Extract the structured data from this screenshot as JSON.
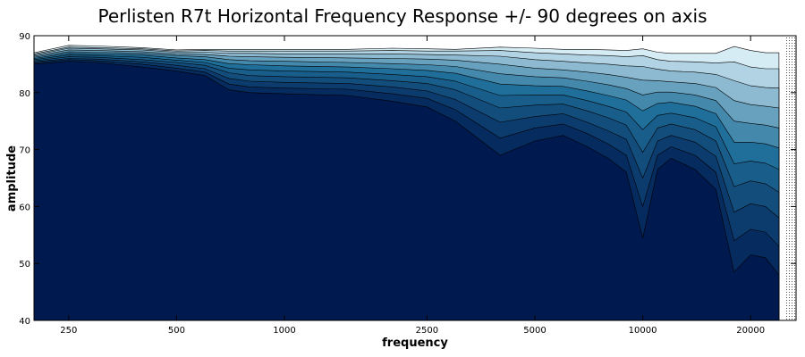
{
  "chart_data": {
    "type": "area",
    "title": "Perlisten R7t Horizontal Frequency Response +/- 90 degrees on axis",
    "xlabel": "frequency",
    "ylabel": "amplitude",
    "xscale": "log",
    "xlim": [
      200,
      25000
    ],
    "ylim": [
      40,
      90
    ],
    "xticks": [
      250,
      500,
      1000,
      2500,
      5000,
      10000,
      20000
    ],
    "yticks": [
      40,
      50,
      60,
      70,
      80,
      90
    ],
    "grid": false,
    "legend": "none",
    "colors": {
      "fill_deep": "#001a50",
      "fill_mid": "#1f6f9a",
      "fill_light": "#d6ecf5",
      "line": "#000000"
    },
    "x": [
      200,
      250,
      300,
      400,
      500,
      600,
      700,
      800,
      1000,
      1500,
      2000,
      2500,
      3000,
      4000,
      5000,
      6000,
      7000,
      8000,
      9000,
      10000,
      11000,
      12000,
      14000,
      16000,
      18000,
      20000,
      22000,
      24000
    ],
    "series": [
      {
        "values": [
          85.0,
          85.5,
          85.3,
          84.5,
          83.8,
          83.0,
          80.5,
          80.0,
          79.8,
          79.5,
          78.5,
          77.5,
          75.0,
          69.0,
          71.5,
          72.5,
          70.5,
          68.5,
          66.0,
          54.5,
          66.5,
          68.5,
          66.5,
          63.0,
          48.5,
          51.5,
          51.0,
          48.0
        ]
      },
      {
        "values": [
          85.2,
          85.8,
          85.6,
          85.0,
          84.3,
          83.6,
          81.5,
          81.0,
          80.8,
          80.6,
          79.8,
          79.0,
          77.0,
          72.0,
          73.8,
          74.5,
          72.8,
          71.0,
          69.0,
          60.0,
          69.0,
          70.5,
          69.0,
          66.0,
          54.0,
          56.0,
          55.5,
          53.0
        ]
      },
      {
        "values": [
          85.4,
          86.0,
          85.9,
          85.4,
          84.8,
          84.2,
          82.5,
          82.0,
          81.8,
          81.6,
          81.0,
          80.3,
          78.8,
          74.8,
          75.8,
          76.3,
          74.8,
          73.3,
          71.8,
          65.0,
          71.5,
          72.5,
          71.3,
          68.8,
          59.0,
          60.5,
          60.0,
          58.0
        ]
      },
      {
        "values": [
          85.6,
          86.3,
          86.2,
          85.8,
          85.3,
          84.8,
          83.5,
          83.0,
          82.8,
          82.6,
          82.1,
          81.6,
          80.5,
          77.3,
          77.8,
          78.0,
          76.8,
          75.6,
          74.3,
          69.5,
          73.8,
          74.5,
          73.5,
          71.5,
          63.5,
          64.5,
          64.0,
          62.5
        ]
      },
      {
        "values": [
          85.8,
          86.6,
          86.5,
          86.2,
          85.7,
          85.3,
          84.3,
          84.0,
          83.8,
          83.6,
          83.2,
          82.8,
          82.0,
          79.5,
          79.6,
          79.6,
          78.6,
          77.6,
          76.6,
          73.5,
          76.0,
          76.4,
          75.6,
          74.0,
          67.5,
          68.0,
          67.6,
          66.5
        ]
      },
      {
        "values": [
          86.0,
          86.9,
          86.8,
          86.6,
          86.1,
          85.8,
          85.1,
          84.9,
          84.7,
          84.5,
          84.2,
          83.9,
          83.4,
          81.5,
          81.2,
          81.1,
          80.3,
          79.5,
          78.7,
          76.8,
          78.1,
          78.3,
          77.6,
          76.3,
          71.3,
          71.3,
          71.0,
          70.3
        ]
      },
      {
        "values": [
          86.2,
          87.2,
          87.1,
          86.9,
          86.5,
          86.3,
          85.8,
          85.6,
          85.5,
          85.3,
          85.1,
          84.9,
          84.6,
          83.3,
          82.8,
          82.6,
          82.0,
          81.4,
          80.7,
          79.6,
          80.1,
          80.1,
          79.6,
          78.6,
          75.0,
          74.6,
          74.3,
          73.8
        ]
      },
      {
        "values": [
          86.4,
          87.5,
          87.4,
          87.2,
          86.8,
          86.7,
          86.4,
          86.3,
          86.2,
          86.1,
          86.0,
          85.9,
          85.7,
          85.0,
          84.3,
          84.0,
          83.6,
          83.2,
          82.7,
          82.2,
          82.1,
          81.9,
          81.6,
          80.9,
          78.6,
          77.9,
          77.6,
          77.3
        ]
      },
      {
        "values": [
          86.6,
          87.8,
          87.7,
          87.5,
          87.1,
          87.1,
          86.9,
          86.9,
          86.8,
          86.8,
          86.8,
          86.7,
          86.6,
          86.4,
          85.8,
          85.5,
          85.2,
          85.0,
          84.7,
          84.6,
          84.1,
          83.8,
          83.6,
          83.2,
          82.1,
          81.2,
          80.9,
          80.8
        ]
      },
      {
        "values": [
          86.8,
          88.0,
          87.9,
          87.7,
          87.3,
          87.4,
          87.3,
          87.3,
          87.3,
          87.3,
          87.4,
          87.3,
          87.3,
          87.4,
          87.0,
          86.8,
          86.6,
          86.5,
          86.3,
          86.5,
          85.8,
          85.5,
          85.4,
          85.2,
          85.4,
          84.5,
          84.2,
          84.2
        ]
      },
      {
        "values": [
          87.0,
          88.3,
          88.2,
          87.9,
          87.5,
          87.6,
          87.6,
          87.6,
          87.6,
          87.6,
          87.8,
          87.7,
          87.6,
          88.0,
          87.8,
          87.6,
          87.6,
          87.5,
          87.4,
          87.7,
          87.1,
          86.9,
          86.9,
          86.9,
          88.1,
          87.4,
          87.0,
          87.0
        ]
      }
    ]
  }
}
